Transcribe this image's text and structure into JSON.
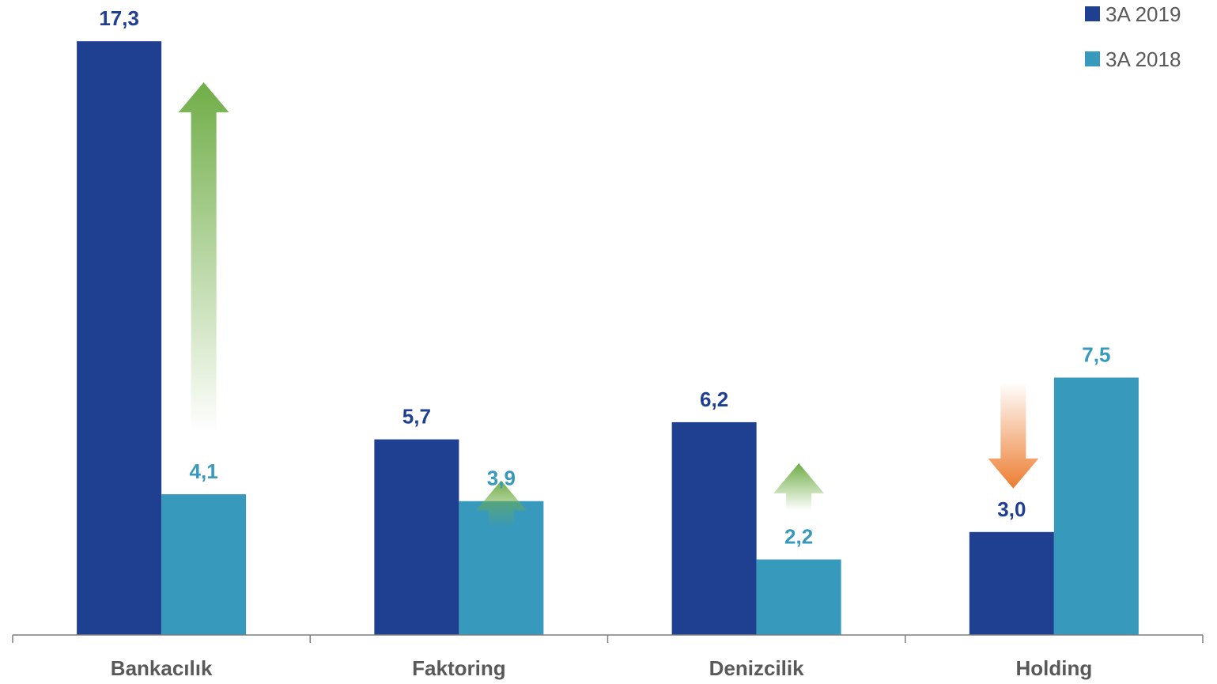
{
  "chart_data": {
    "type": "bar",
    "categories": [
      "Bankacılık",
      "Faktoring",
      "Denizcilik",
      "Holding"
    ],
    "series": [
      {
        "name": "3A 2019",
        "values": [
          17.3,
          5.7,
          6.2,
          3.0
        ],
        "labels": [
          "17,3",
          "5,7",
          "6,2",
          "3,0"
        ],
        "color": "#1f3f91",
        "label_color": "#1f3f91"
      },
      {
        "name": "3A 2018",
        "values": [
          4.1,
          3.9,
          2.2,
          7.5
        ],
        "labels": [
          "4,1",
          "3,9",
          "2,2",
          "7,5"
        ],
        "color": "#3799bc",
        "label_color": "#3799bc"
      }
    ],
    "trend_arrows": [
      {
        "category": "Bankacılık",
        "direction": "up",
        "color": "#70ad47"
      },
      {
        "category": "Faktoring",
        "direction": "up",
        "color": "#70ad47"
      },
      {
        "category": "Denizcilik",
        "direction": "up",
        "color": "#70ad47"
      },
      {
        "category": "Holding",
        "direction": "down",
        "color": "#ed7d31"
      }
    ],
    "legend": {
      "placement": "top-right",
      "entries": [
        "3A 2019",
        "3A 2018"
      ]
    },
    "title": "",
    "xlabel": "",
    "ylabel": "",
    "ylim": [
      0,
      18
    ],
    "grid": false,
    "y_axis_visible": false
  }
}
